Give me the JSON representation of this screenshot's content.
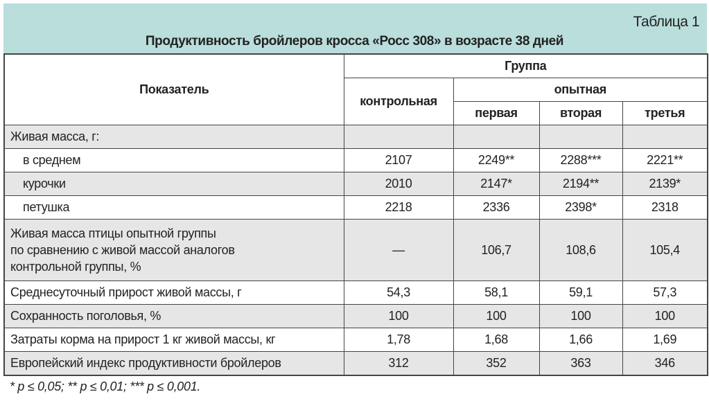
{
  "table_number": "Таблица 1",
  "title": "Продуктивность бройлеров кросса «Росс 308» в возрасте 38 дней",
  "header": {
    "indicator": "Показатель",
    "group": "Группа",
    "control": "контрольная",
    "experimental": "опытная",
    "first": "первая",
    "second": "вторая",
    "third": "третья"
  },
  "rows": [
    {
      "label": "Живая масса, г:",
      "values": [
        "",
        "",
        "",
        ""
      ]
    },
    {
      "label": "в среднем",
      "values": [
        "2107",
        "2249**",
        "2288***",
        "2221**"
      ]
    },
    {
      "label": "курочки",
      "values": [
        "2010",
        "2147*",
        "2194**",
        "2139*"
      ]
    },
    {
      "label": "петушка",
      "values": [
        "2218",
        "2336",
        "2398*",
        "2318"
      ]
    },
    {
      "label_lines": [
        "Живая масса птицы опытной группы",
        "по сравнению с живой массой аналогов",
        "контрольной группы, %"
      ],
      "values": [
        "—",
        "106,7",
        "108,6",
        "105,4"
      ]
    },
    {
      "label": "Среднесуточный  прирост живой массы, г",
      "values": [
        "54,3",
        "58,1",
        "59,1",
        "57,3"
      ]
    },
    {
      "label": "Сохранность поголовья, %",
      "values": [
        "100",
        "100",
        "100",
        "100"
      ]
    },
    {
      "label": "Затраты корма на прирост 1 кг живой массы, кг",
      "values": [
        "1,78",
        "1,68",
        "1,66",
        "1,69"
      ]
    },
    {
      "label": "Европейский индекс продуктивности бройлеров",
      "values": [
        "312",
        "352",
        "363",
        "346"
      ]
    }
  ],
  "footnote": "* p ≤ 0,05; ** p ≤ 0,01; *** p ≤ 0,001.",
  "colors": {
    "band": "#b9dedb",
    "row_shade": "#e6e6e6"
  }
}
